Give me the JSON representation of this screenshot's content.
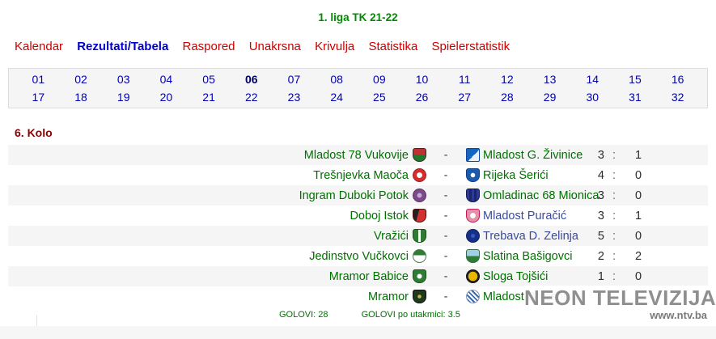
{
  "header": {
    "title": "1. liga TK 21-22"
  },
  "nav": {
    "items": [
      {
        "label": "Kalendar",
        "active": false
      },
      {
        "label": "Rezultati/Tabela",
        "active": true
      },
      {
        "label": "Raspored",
        "active": false
      },
      {
        "label": "Unakrsna",
        "active": false
      },
      {
        "label": "Krivulja",
        "active": false
      },
      {
        "label": "Statistika",
        "active": false
      },
      {
        "label": "Spielerstatistik",
        "active": false
      }
    ]
  },
  "rounds": {
    "current": "06",
    "row1": [
      "01",
      "02",
      "03",
      "04",
      "05",
      "06",
      "07",
      "08",
      "09",
      "10",
      "11",
      "12",
      "13",
      "14",
      "15",
      "16"
    ],
    "row2": [
      "17",
      "18",
      "19",
      "20",
      "21",
      "22",
      "23",
      "24",
      "25",
      "26",
      "27",
      "28",
      "29",
      "30",
      "31",
      "32"
    ]
  },
  "section": {
    "heading": "6. Kolo"
  },
  "ui": {
    "dash": "-",
    "colon": ":"
  },
  "matches": [
    {
      "home": "Mladost 78 Vukovije",
      "away": "Mladost G. Živinice",
      "home_score": "3",
      "away_score": "1",
      "home_badge": "shield-red-green-crest",
      "away_badge": "blue-flag"
    },
    {
      "home": "Trešnjevka Maoča",
      "away": "Rijeka Šerići",
      "home_score": "4",
      "away_score": "0",
      "home_badge": "red-white-roundel",
      "away_badge": "blue-white-crest"
    },
    {
      "home": "Ingram Duboki Potok",
      "away": "Omladinac 68 Mionica",
      "home_score": "3",
      "away_score": "0",
      "home_badge": "purple-roundel",
      "away_badge": "blue-striped-shield"
    },
    {
      "home": "Doboj Istok",
      "away": "Mladost Puračić",
      "home_score": "3",
      "away_score": "1",
      "home_badge": "red-black-shield",
      "away_badge": "pink-white-shield"
    },
    {
      "home": "Vražići",
      "away": "Trebava D. Zelinja",
      "home_score": "5",
      "away_score": "0",
      "home_badge": "green-white-shield",
      "away_badge": "navy-roundel"
    },
    {
      "home": "Jedinstvo Vučkovci",
      "away": "Slatina Bašigovci",
      "home_score": "2",
      "away_score": "2",
      "home_badge": "green-white-roundel",
      "away_badge": "teal-green-shield"
    },
    {
      "home": "Mramor Babice",
      "away": "Sloga Tojšići",
      "home_score": "1",
      "away_score": "0",
      "home_badge": "green-cross-shield",
      "away_badge": "yellow-black-roundel"
    },
    {
      "home": "Mramor",
      "away": "Mladost Brijesnica",
      "home_score": "",
      "away_score": "",
      "home_badge": "dark-green-crest",
      "away_badge": "white-blue-striped-roundel"
    }
  ],
  "summary": {
    "goals": "GOLOVI: 28",
    "goals_per_match": "GOLOVI po utakmici: 3.5"
  },
  "watermark": {
    "title": "NEON TELEVIZIJA",
    "url": "www.ntv.ba"
  },
  "colors": {
    "title_green": "#008a00",
    "nav_red": "#cc0000",
    "nav_active_blue": "#0000cc",
    "round_blue": "#0000b4",
    "heading_maroon": "#8b0000",
    "team_green": "#007000",
    "team_navy": "#3a4a9c",
    "row_alt_gray": "#f5f5f6",
    "watermark_gray": "#8f8f8f"
  }
}
